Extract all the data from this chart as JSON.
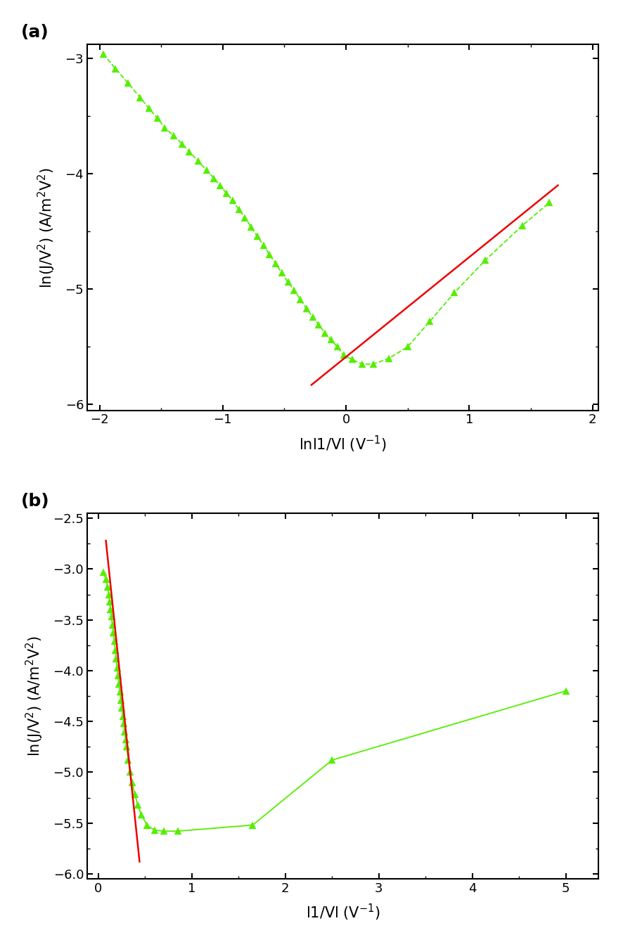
{
  "panel_a": {
    "xlabel": "lnl1/Vl (V⁻¹)",
    "ylabel": "ln(J/V²) (A/m²V²)",
    "xlim": [
      -2.1,
      2.05
    ],
    "ylim": [
      -6.05,
      -2.88
    ],
    "xticks": [
      -2,
      -1,
      0,
      1,
      2
    ],
    "yticks": [
      -6,
      -5,
      -4,
      -3
    ],
    "data_x": [
      -1.97,
      -1.87,
      -1.77,
      -1.67,
      -1.6,
      -1.53,
      -1.47,
      -1.4,
      -1.33,
      -1.27,
      -1.2,
      -1.13,
      -1.07,
      -1.02,
      -0.97,
      -0.92,
      -0.87,
      -0.82,
      -0.77,
      -0.72,
      -0.67,
      -0.62,
      -0.57,
      -0.52,
      -0.47,
      -0.42,
      -0.37,
      -0.32,
      -0.27,
      -0.22,
      -0.17,
      -0.12,
      -0.07,
      -0.02,
      0.05,
      0.13,
      0.22,
      0.35,
      0.5,
      0.68,
      0.88,
      1.13,
      1.43,
      1.65
    ],
    "data_y": [
      -2.96,
      -3.09,
      -3.21,
      -3.34,
      -3.43,
      -3.52,
      -3.6,
      -3.67,
      -3.74,
      -3.81,
      -3.89,
      -3.97,
      -4.04,
      -4.1,
      -4.17,
      -4.23,
      -4.31,
      -4.38,
      -4.46,
      -4.54,
      -4.62,
      -4.7,
      -4.78,
      -4.86,
      -4.94,
      -5.01,
      -5.09,
      -5.17,
      -5.24,
      -5.31,
      -5.38,
      -5.44,
      -5.5,
      -5.57,
      -5.61,
      -5.65,
      -5.65,
      -5.6,
      -5.5,
      -5.28,
      -5.03,
      -4.75,
      -4.45,
      -4.25
    ],
    "fit_x": [
      -0.28,
      1.72
    ],
    "fit_y": [
      -5.83,
      -4.1
    ],
    "label": "(a)",
    "linestyle": "--"
  },
  "panel_b": {
    "xlabel": "l1/Vl (V⁻¹)",
    "ylabel": "ln(J/V²) (A/m²V²)",
    "xlim": [
      -0.12,
      5.35
    ],
    "ylim": [
      -6.05,
      -2.45
    ],
    "xticks": [
      0,
      1,
      2,
      3,
      4,
      5
    ],
    "yticks": [
      -6.0,
      -5.5,
      -5.0,
      -4.5,
      -4.0,
      -3.5,
      -3.0,
      -2.5
    ],
    "data_x": [
      0.05,
      0.08,
      0.1,
      0.11,
      0.12,
      0.13,
      0.14,
      0.15,
      0.16,
      0.17,
      0.18,
      0.19,
      0.2,
      0.21,
      0.22,
      0.23,
      0.24,
      0.25,
      0.26,
      0.27,
      0.28,
      0.29,
      0.3,
      0.32,
      0.34,
      0.36,
      0.39,
      0.42,
      0.46,
      0.52,
      0.6,
      0.7,
      0.85,
      1.65,
      2.5,
      5.0
    ],
    "data_y": [
      -3.03,
      -3.1,
      -3.18,
      -3.25,
      -3.32,
      -3.4,
      -3.47,
      -3.55,
      -3.63,
      -3.71,
      -3.8,
      -3.88,
      -3.97,
      -4.05,
      -4.13,
      -4.21,
      -4.29,
      -4.37,
      -4.45,
      -4.52,
      -4.6,
      -4.68,
      -4.75,
      -4.88,
      -5.0,
      -5.1,
      -5.22,
      -5.32,
      -5.42,
      -5.52,
      -5.57,
      -5.58,
      -5.58,
      -5.52,
      -4.88,
      -4.2
    ],
    "fit_x": [
      0.08,
      0.44
    ],
    "fit_y": [
      -2.72,
      -5.88
    ],
    "label": "(b)",
    "linestyle": "-"
  },
  "triangle_color": "#55ee00",
  "line_color": "#55ee00",
  "fit_color": "#ee0000",
  "marker_size": 7,
  "line_width": 1.3,
  "fit_linewidth": 1.8,
  "background_color": "#ffffff"
}
